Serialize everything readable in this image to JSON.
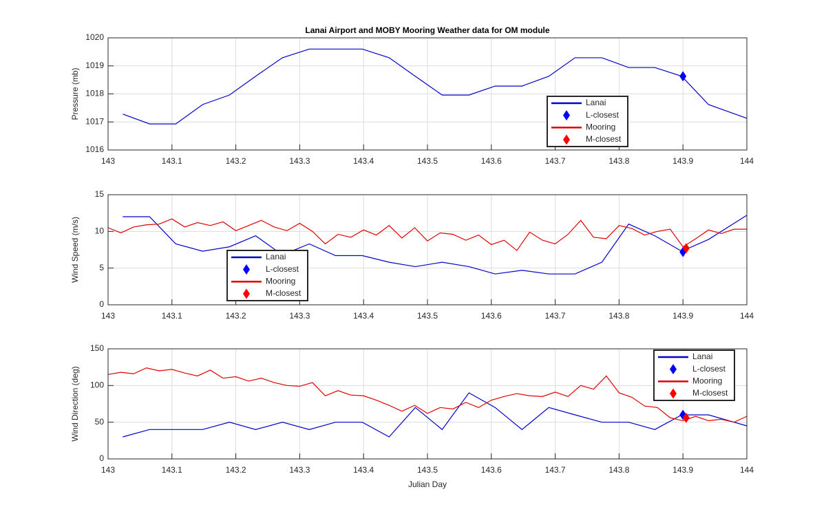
{
  "chart_data": [
    {
      "type": "line",
      "title": "Lanai Airport and MOBY Mooring Weather data for OM module",
      "ylabel": "Pressure (mb)",
      "xlim": [
        143,
        144
      ],
      "xticks": [
        143,
        143.1,
        143.2,
        143.3,
        143.4,
        143.5,
        143.6,
        143.7,
        143.8,
        143.9,
        144
      ],
      "ylim": [
        1016,
        1020
      ],
      "yticks": [
        1016,
        1017,
        1018,
        1019,
        1020
      ],
      "grid": true,
      "legend": "lower right",
      "series": [
        {
          "name": "Lanai",
          "color": "#0000cc",
          "style": "line",
          "x": [
            143.023,
            143.065,
            143.106,
            143.148,
            143.19,
            143.231,
            143.273,
            143.315,
            143.356,
            143.398,
            143.44,
            143.481,
            143.523,
            143.565,
            143.606,
            143.648,
            143.69,
            143.731,
            143.773,
            143.815,
            143.856,
            143.898,
            143.94,
            144.0
          ],
          "values": [
            1017.28,
            1016.93,
            1016.93,
            1017.62,
            1017.96,
            1018.63,
            1019.29,
            1019.6,
            1019.6,
            1019.6,
            1019.29,
            1018.63,
            1017.96,
            1017.96,
            1018.28,
            1018.28,
            1018.63,
            1019.29,
            1019.29,
            1018.94,
            1018.94,
            1018.63,
            1017.62,
            1017.13
          ]
        },
        {
          "name": "L-closest",
          "color": "#0000ff",
          "style": "diamond",
          "x": [
            143.9
          ],
          "values": [
            1018.63
          ]
        },
        {
          "name": "Mooring",
          "color": "#e00000",
          "style": "line",
          "x": [],
          "values": []
        },
        {
          "name": "M-closest",
          "color": "#ff0000",
          "style": "diamond",
          "x": [],
          "values": []
        }
      ]
    },
    {
      "type": "line",
      "ylabel": "Wind Speed (m/s)",
      "xlim": [
        143,
        144
      ],
      "xticks": [
        143,
        143.1,
        143.2,
        143.3,
        143.4,
        143.5,
        143.6,
        143.7,
        143.8,
        143.9,
        144
      ],
      "ylim": [
        0,
        15
      ],
      "yticks": [
        0,
        5,
        10,
        15
      ],
      "grid": true,
      "legend": "lower left",
      "series": [
        {
          "name": "Lanai",
          "color": "#0000cc",
          "style": "line",
          "x": [
            143.023,
            143.065,
            143.106,
            143.148,
            143.19,
            143.231,
            143.273,
            143.315,
            143.356,
            143.398,
            143.44,
            143.481,
            143.523,
            143.565,
            143.606,
            143.648,
            143.69,
            143.731,
            143.773,
            143.815,
            143.856,
            143.898,
            143.94,
            144.0
          ],
          "values": [
            12.0,
            12.0,
            8.3,
            7.3,
            7.9,
            9.4,
            6.8,
            8.3,
            6.7,
            6.7,
            5.8,
            5.2,
            5.8,
            5.2,
            4.2,
            4.7,
            4.2,
            4.2,
            5.8,
            11.0,
            9.4,
            7.3,
            8.9,
            12.2
          ]
        },
        {
          "name": "L-closest",
          "color": "#0000ff",
          "style": "diamond",
          "x": [
            143.9
          ],
          "values": [
            7.2
          ]
        },
        {
          "name": "Mooring",
          "color": "#e00000",
          "style": "line",
          "x": [
            143,
            143.02,
            143.04,
            143.06,
            143.08,
            143.1,
            143.12,
            143.14,
            143.16,
            143.18,
            143.2,
            143.22,
            143.24,
            143.26,
            143.28,
            143.3,
            143.32,
            143.34,
            143.36,
            143.38,
            143.4,
            143.42,
            143.44,
            143.46,
            143.48,
            143.5,
            143.52,
            143.54,
            143.56,
            143.58,
            143.6,
            143.62,
            143.64,
            143.66,
            143.68,
            143.7,
            143.72,
            143.74,
            143.76,
            143.78,
            143.8,
            143.82,
            143.84,
            143.86,
            143.88,
            143.9,
            143.92,
            143.94,
            143.96,
            143.98,
            144
          ],
          "values": [
            10.5,
            9.8,
            10.6,
            10.9,
            11.0,
            11.7,
            10.6,
            11.2,
            10.8,
            11.3,
            10.1,
            10.8,
            11.5,
            10.6,
            10.1,
            11.1,
            10.0,
            8.3,
            9.6,
            9.2,
            10.2,
            9.5,
            10.8,
            9.1,
            10.5,
            8.7,
            9.8,
            9.6,
            8.8,
            9.5,
            8.2,
            8.8,
            7.4,
            9.9,
            8.8,
            8.3,
            9.6,
            11.5,
            9.2,
            9.0,
            10.8,
            10.4,
            9.5,
            10.0,
            10.3,
            7.9,
            9.0,
            10.2,
            9.7,
            10.3,
            10.3
          ]
        },
        {
          "name": "M-closest",
          "color": "#ff0000",
          "style": "diamond",
          "x": [
            143.905
          ],
          "values": [
            7.7
          ]
        }
      ]
    },
    {
      "type": "line",
      "ylabel": "Wind Direction (deg)",
      "xlabel": "Julian Day",
      "xlim": [
        143,
        144
      ],
      "xticks": [
        143,
        143.1,
        143.2,
        143.3,
        143.4,
        143.5,
        143.6,
        143.7,
        143.8,
        143.9,
        144
      ],
      "ylim": [
        0,
        150
      ],
      "yticks": [
        0,
        50,
        100,
        150
      ],
      "grid": true,
      "legend": "upper right",
      "series": [
        {
          "name": "Lanai",
          "color": "#0000cc",
          "style": "line",
          "x": [
            143.023,
            143.065,
            143.106,
            143.148,
            143.19,
            143.231,
            143.273,
            143.315,
            143.356,
            143.398,
            143.44,
            143.481,
            143.523,
            143.565,
            143.606,
            143.648,
            143.69,
            143.731,
            143.773,
            143.815,
            143.856,
            143.898,
            143.94,
            144.0
          ],
          "values": [
            30,
            40,
            40,
            40,
            50,
            40,
            50,
            40,
            50,
            50,
            30,
            70,
            40,
            90,
            70,
            40,
            70,
            60,
            50,
            50,
            40,
            60,
            60,
            45
          ]
        },
        {
          "name": "L-closest",
          "color": "#0000ff",
          "style": "diamond",
          "x": [
            143.9
          ],
          "values": [
            60
          ]
        },
        {
          "name": "Mooring",
          "color": "#e00000",
          "style": "line",
          "x": [
            143,
            143.02,
            143.04,
            143.06,
            143.08,
            143.1,
            143.12,
            143.14,
            143.16,
            143.18,
            143.2,
            143.22,
            143.24,
            143.26,
            143.28,
            143.3,
            143.32,
            143.34,
            143.36,
            143.38,
            143.4,
            143.42,
            143.44,
            143.46,
            143.48,
            143.5,
            143.52,
            143.54,
            143.56,
            143.58,
            143.6,
            143.62,
            143.64,
            143.66,
            143.68,
            143.7,
            143.72,
            143.74,
            143.76,
            143.78,
            143.8,
            143.82,
            143.84,
            143.86,
            143.88,
            143.9,
            143.92,
            143.94,
            143.96,
            143.98,
            144
          ],
          "values": [
            115,
            118,
            116,
            124,
            120,
            122,
            117,
            113,
            121,
            110,
            112,
            106,
            110,
            104,
            100,
            99,
            104,
            86,
            93,
            87,
            86,
            80,
            73,
            65,
            73,
            62,
            70,
            68,
            77,
            70,
            80,
            85,
            89,
            86,
            85,
            91,
            85,
            100,
            95,
            113,
            90,
            84,
            72,
            70,
            56,
            52,
            58,
            52,
            54,
            50,
            58
          ]
        },
        {
          "name": "M-closest",
          "color": "#ff0000",
          "style": "diamond",
          "x": [
            143.905
          ],
          "values": [
            56
          ]
        }
      ]
    }
  ]
}
